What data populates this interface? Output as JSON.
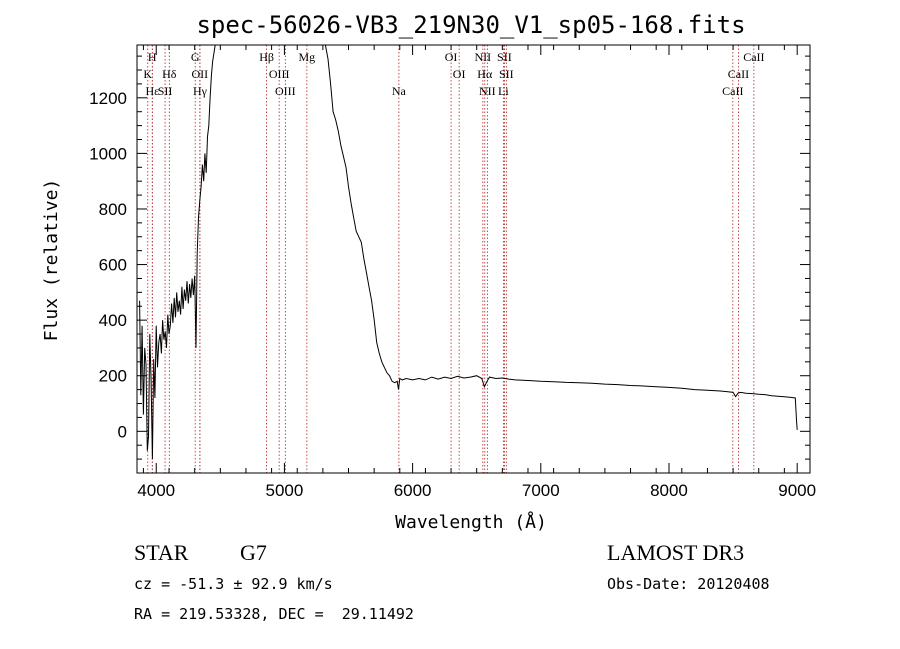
{
  "chart_data": {
    "type": "line",
    "title": "spec-56026-VB3_219N30_V1_sp05-168.fits",
    "xlabel": "Wavelength (Å)",
    "ylabel": "Flux (relative)",
    "xlim": [
      3850,
      9100
    ],
    "ylim": [
      -150,
      1390
    ],
    "x_ticks": [
      4000,
      5000,
      6000,
      7000,
      8000,
      9000
    ],
    "y_ticks": [
      0,
      200,
      400,
      600,
      800,
      1000,
      1200
    ],
    "series": [
      {
        "name": "spectrum",
        "x": [
          3870,
          3880,
          3890,
          3900,
          3910,
          3920,
          3930,
          3940,
          3950,
          3960,
          3970,
          3980,
          3990,
          4000,
          4010,
          4020,
          4030,
          4040,
          4050,
          4060,
          4070,
          4080,
          4090,
          4100,
          4110,
          4120,
          4130,
          4140,
          4150,
          4160,
          4170,
          4180,
          4190,
          4200,
          4210,
          4220,
          4230,
          4240,
          4250,
          4260,
          4270,
          4280,
          4290,
          4300,
          4310,
          4320,
          4330,
          4340,
          4350,
          4360,
          4370,
          4380,
          4390,
          4400,
          4410,
          4420,
          4430,
          4440,
          4460,
          4480,
          4500,
          4600,
          4700,
          4800,
          4900,
          5000,
          5100,
          5200,
          5300,
          5320,
          5340,
          5360,
          5380,
          5400,
          5420,
          5440,
          5460,
          5480,
          5500,
          5520,
          5540,
          5560,
          5580,
          5600,
          5620,
          5640,
          5660,
          5680,
          5700,
          5720,
          5740,
          5760,
          5780,
          5800,
          5820,
          5840,
          5860,
          5880,
          5890,
          5900,
          5920,
          5950,
          6000,
          6050,
          6100,
          6150,
          6200,
          6250,
          6300,
          6350,
          6400,
          6450,
          6500,
          6540,
          6560,
          6580,
          6600,
          6650,
          6700,
          6750,
          6800,
          6900,
          7000,
          7100,
          7200,
          7300,
          7400,
          7500,
          7600,
          7700,
          7800,
          7900,
          8000,
          8100,
          8200,
          8300,
          8400,
          8450,
          8500,
          8520,
          8540,
          8560,
          8600,
          8662,
          8700,
          8750,
          8800,
          8850,
          8900,
          8950,
          8985,
          8995,
          9000
        ],
        "y": [
          470,
          130,
          380,
          60,
          300,
          240,
          -70,
          -20,
          350,
          180,
          -100,
          260,
          120,
          380,
          230,
          320,
          350,
          280,
          400,
          330,
          360,
          300,
          420,
          350,
          380,
          460,
          390,
          480,
          410,
          500,
          430,
          470,
          420,
          520,
          440,
          510,
          470,
          540,
          460,
          530,
          480,
          550,
          490,
          560,
          300,
          640,
          770,
          830,
          880,
          960,
          900,
          1000,
          930,
          1060,
          1100,
          1200,
          1280,
          1330,
          1390,
          1390,
          1390,
          1390,
          1390,
          1390,
          1390,
          1390,
          1390,
          1390,
          1390,
          1390,
          1340,
          1250,
          1150,
          1120,
          1080,
          1030,
          990,
          950,
          880,
          820,
          770,
          720,
          700,
          680,
          620,
          570,
          520,
          470,
          400,
          320,
          280,
          250,
          230,
          210,
          200,
          180,
          175,
          180,
          150,
          190,
          185,
          190,
          185,
          190,
          185,
          195,
          188,
          195,
          190,
          198,
          192,
          195,
          200,
          190,
          160,
          180,
          195,
          190,
          192,
          188,
          185,
          183,
          180,
          178,
          176,
          175,
          173,
          170,
          168,
          165,
          163,
          160,
          158,
          155,
          150,
          148,
          145,
          143,
          140,
          125,
          138,
          140,
          137,
          135,
          133,
          132,
          128,
          126,
          124,
          122,
          120,
          40,
          5
        ]
      }
    ],
    "spectral_lines": [
      {
        "label": "H",
        "x": 3969,
        "row": 1
      },
      {
        "label": "K",
        "x": 3934,
        "row": 2
      },
      {
        "label": "Hε",
        "x": 3970,
        "row": 3
      },
      {
        "label": "SII",
        "x": 4069,
        "row": 3
      },
      {
        "label": "Hδ",
        "x": 4102,
        "row": 2
      },
      {
        "label": "G",
        "x": 4304,
        "row": 1
      },
      {
        "label": "OII",
        "x": 4340,
        "row": 2
      },
      {
        "label": "Hγ",
        "x": 4341,
        "row": 3
      },
      {
        "label": "Hβ",
        "x": 4861,
        "row": 1
      },
      {
        "label": "OIII",
        "x": 4959,
        "row": 2
      },
      {
        "label": "OIII",
        "x": 5007,
        "row": 3
      },
      {
        "label": "Mg",
        "x": 5175,
        "row": 1
      },
      {
        "label": "Na",
        "x": 5893,
        "row": 3
      },
      {
        "label": "OI",
        "x": 6300,
        "row": 1
      },
      {
        "label": "OI",
        "x": 6363,
        "row": 2
      },
      {
        "label": "NII",
        "x": 6548,
        "row": 1
      },
      {
        "label": "Hα",
        "x": 6563,
        "row": 2
      },
      {
        "label": "NII",
        "x": 6583,
        "row": 3
      },
      {
        "label": "SII",
        "x": 6716,
        "row": 1
      },
      {
        "label": "SII",
        "x": 6731,
        "row": 2
      },
      {
        "label": "Li",
        "x": 6708,
        "row": 3
      },
      {
        "label": "CaII",
        "x": 8662,
        "row": 1
      },
      {
        "label": "CaII",
        "x": 8542,
        "row": 2
      },
      {
        "label": "CaII",
        "x": 8498,
        "row": 3
      }
    ]
  },
  "info": {
    "object_class": "STAR",
    "subclass": "G7",
    "survey": "LAMOST DR3",
    "cz": "cz = -51.3 ± 92.9 km/s",
    "obs_date": "Obs-Date: 20120408",
    "coords": "RA = 219.53328, DEC =  29.11492"
  },
  "colors": {
    "spectrum": "#000000",
    "line_marker": "#b22222",
    "axis": "#000000"
  }
}
